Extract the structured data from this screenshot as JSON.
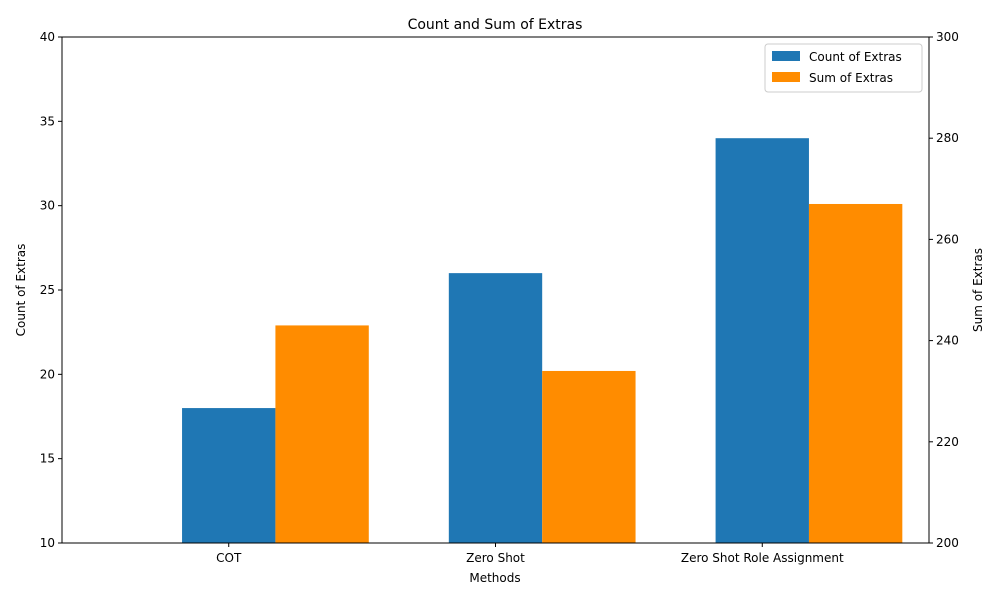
{
  "chart_data": {
    "type": "bar",
    "title": "Count and Sum of Extras",
    "xlabel": "Methods",
    "categories": [
      "COT",
      "Zero Shot",
      "Zero Shot Role Assignment"
    ],
    "left_axis": {
      "label": "Count of Extras",
      "ylim": [
        10,
        40
      ],
      "ticks": [
        10,
        15,
        20,
        25,
        30,
        35,
        40
      ]
    },
    "right_axis": {
      "label": "Sum of Extras",
      "ylim": [
        200,
        300
      ],
      "ticks": [
        200,
        220,
        240,
        260,
        280,
        300
      ]
    },
    "series": [
      {
        "name": "Count of Extras",
        "axis": "left",
        "color": "#1f77b4",
        "values": [
          18,
          26,
          34
        ]
      },
      {
        "name": "Sum of Extras",
        "axis": "right",
        "color": "#ff8c00",
        "values": [
          243,
          234,
          267
        ]
      }
    ],
    "grid": false,
    "legend_position": "top-right"
  }
}
